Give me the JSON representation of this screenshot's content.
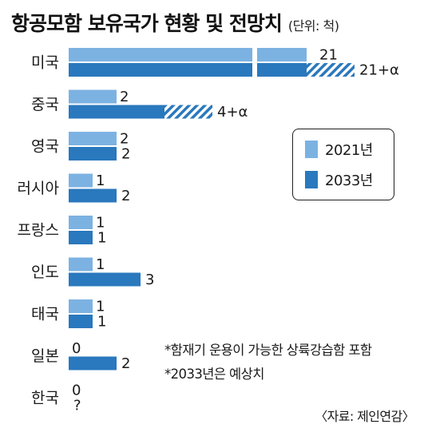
{
  "header": {
    "title": "항공모함 보유국가 현황 및 전망치",
    "unit": "(단위: 척)"
  },
  "colors": {
    "series_2021": "#7cb2e2",
    "series_2033": "#2a78bd",
    "text": "#1a1a1a"
  },
  "legend": {
    "placement": "right-middle",
    "items": [
      "2021년",
      "2033년"
    ]
  },
  "notes": [
    "*함재기 운용이 가능한 상륙강습함 포함",
    "*2033년은 예상치"
  ],
  "source": "〈자료: 제인연감〉",
  "chart_data": {
    "type": "bar",
    "orientation": "horizontal",
    "title": "항공모함 보유국가 현황 및 전망치",
    "unit": "척",
    "categories": [
      "미국",
      "중국",
      "영국",
      "러시아",
      "프랑스",
      "인도",
      "태국",
      "일본",
      "한국"
    ],
    "series": [
      {
        "name": "2021년",
        "values": [
          21,
          2,
          2,
          1,
          1,
          1,
          1,
          0,
          0
        ],
        "labels": [
          "21",
          "2",
          "2",
          "1",
          "1",
          "1",
          "1",
          "0",
          "0"
        ]
      },
      {
        "name": "2033년",
        "values": [
          21,
          4,
          2,
          2,
          1,
          3,
          1,
          2,
          null
        ],
        "labels": [
          "21+α",
          "4+α",
          "2",
          "2",
          "1",
          "3",
          "1",
          "2",
          "?"
        ],
        "extra_alpha": [
          true,
          true,
          false,
          false,
          false,
          false,
          false,
          false,
          false
        ]
      }
    ],
    "axis_break": {
      "category": "미국",
      "note": "bar truncated"
    },
    "grid": false
  }
}
